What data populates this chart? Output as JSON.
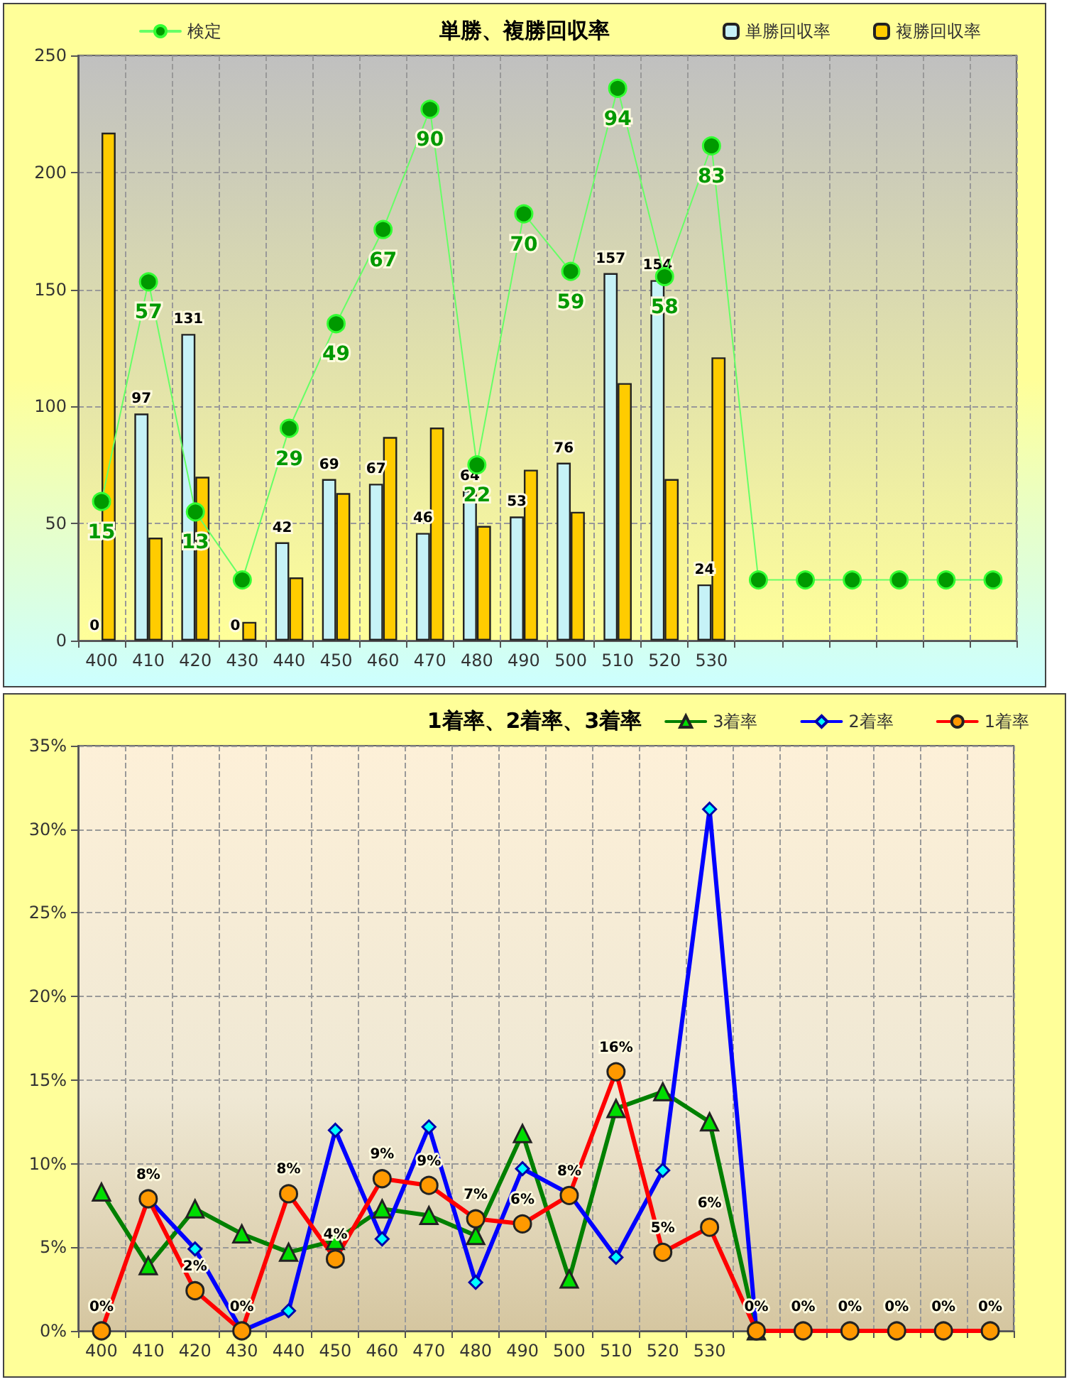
{
  "chart_data": [
    {
      "type": "bar",
      "title": "単勝、複勝回収率",
      "categories": [
        "400",
        "410",
        "420",
        "430",
        "440",
        "450",
        "460",
        "470",
        "480",
        "490",
        "500",
        "510",
        "520",
        "530",
        null,
        null,
        null,
        null,
        null,
        null
      ],
      "series": [
        {
          "name": "単勝回収率",
          "type": "bar",
          "color": "#c6f2f7",
          "values": [
            0,
            97,
            131,
            0,
            42,
            69,
            67,
            46,
            64,
            53,
            76,
            157,
            154,
            24,
            null,
            null,
            null,
            null,
            null,
            null
          ],
          "value_labels": [
            "0",
            "97",
            "131",
            "0",
            "42",
            "69",
            "67",
            "46",
            "64",
            "53",
            "76",
            "157",
            "154",
            "24",
            null,
            null,
            null,
            null,
            null,
            null
          ]
        },
        {
          "name": "複勝回収率",
          "type": "bar",
          "color": "#ffcc00",
          "values": [
            217,
            44,
            70,
            8,
            27,
            63,
            87,
            91,
            49,
            73,
            55,
            110,
            69,
            121,
            null,
            null,
            null,
            null,
            null,
            null
          ]
        },
        {
          "name": "検定",
          "type": "line",
          "axis": "y2",
          "marker": "circle",
          "color": "#009900",
          "values": [
            15,
            57,
            13,
            0,
            29,
            49,
            67,
            90,
            22,
            70,
            59,
            94,
            58,
            83,
            0,
            0,
            0,
            0,
            0,
            0
          ],
          "value_labels": [
            "15",
            "57",
            "13",
            null,
            "29",
            "49",
            "67",
            "90",
            "22",
            "70",
            "59",
            "94",
            "58",
            "83",
            null,
            null,
            null,
            null,
            null,
            null
          ]
        }
      ],
      "ylim": [
        0,
        250
      ],
      "yticks": [
        0,
        50,
        100,
        150,
        200,
        250
      ],
      "y2lim": [
        -11.6,
        100.3
      ],
      "grid": true,
      "legend": "top"
    },
    {
      "type": "line",
      "title": "1着率、2着率、3着率",
      "categories": [
        "400",
        "410",
        "420",
        "430",
        "440",
        "450",
        "460",
        "470",
        "480",
        "490",
        "500",
        "510",
        "520",
        "530",
        null,
        null,
        null,
        null,
        null,
        null
      ],
      "series": [
        {
          "name": "3着率",
          "marker": "triangle",
          "color": "#008000",
          "values": [
            8.3,
            3.9,
            7.3,
            5.8,
            4.7,
            5.4,
            7.3,
            6.9,
            5.7,
            11.8,
            3.1,
            13.3,
            14.3,
            12.5,
            0,
            null,
            null,
            null,
            null,
            null
          ]
        },
        {
          "name": "2着率",
          "marker": "diamond",
          "color": "#0000ff",
          "values": [
            null,
            7.9,
            4.9,
            0,
            1.2,
            12.0,
            5.5,
            12.2,
            2.9,
            9.7,
            8.2,
            4.4,
            9.6,
            31.2,
            0,
            null,
            null,
            null,
            null,
            null
          ]
        },
        {
          "name": "1着率",
          "marker": "circle",
          "color": "#ff0000",
          "values": [
            0,
            7.9,
            2.4,
            0,
            8.2,
            4.3,
            9.1,
            8.7,
            6.7,
            6.4,
            8.1,
            15.5,
            4.7,
            6.2,
            0,
            0,
            0,
            0,
            0,
            0
          ],
          "value_labels": [
            "0%",
            "8%",
            "2%",
            "0%",
            "8%",
            "4%",
            "9%",
            "9%",
            "7%",
            "6%",
            "8%",
            "16%",
            "5%",
            "6%",
            "0%",
            "0%",
            "0%",
            "0%",
            "0%",
            "0%"
          ]
        }
      ],
      "ylim": [
        0,
        35
      ],
      "yticks": [
        {
          "value": 0,
          "label": "0%"
        },
        {
          "value": 5,
          "label": "5%"
        },
        {
          "value": 10,
          "label": "10%"
        },
        {
          "value": 15,
          "label": "15%"
        },
        {
          "value": 20,
          "label": "20%"
        },
        {
          "value": 25,
          "label": "25%"
        },
        {
          "value": 30,
          "label": "30%"
        },
        {
          "value": 35,
          "label": "35%"
        }
      ],
      "grid": true,
      "legend": "top right"
    }
  ]
}
